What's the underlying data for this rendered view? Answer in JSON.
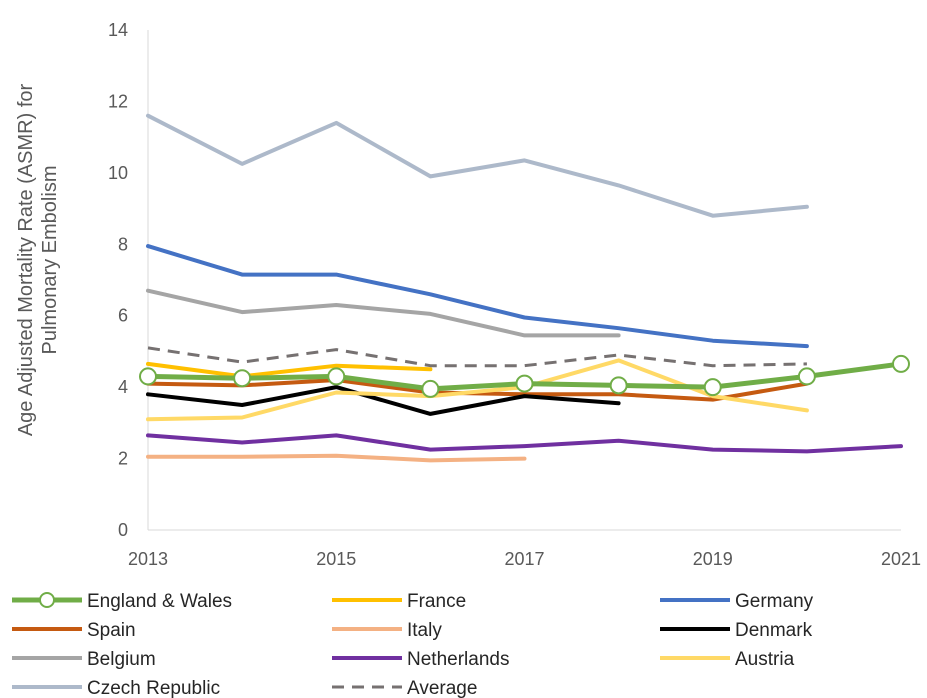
{
  "chart_data": {
    "type": "line",
    "title": "",
    "xlabel": "",
    "ylabel_lines": [
      "Age Adjusted Mortality Rate (ASMR) for",
      "Pulmonary Embolism"
    ],
    "x": [
      2013,
      2014,
      2015,
      2016,
      2017,
      2018,
      2019,
      2020,
      2021
    ],
    "xticks": [
      "2013",
      "2015",
      "2017",
      "2019",
      "2021"
    ],
    "yticks": [
      "0",
      "2",
      "4",
      "6",
      "8",
      "10",
      "12",
      "14"
    ],
    "xlim": [
      2013,
      2021
    ],
    "ylim": [
      0,
      14
    ],
    "grid": false,
    "legend_position": "bottom",
    "series": [
      {
        "name": "England & Wales",
        "color": "#70AD47",
        "dash": false,
        "markers": true,
        "width": 5,
        "values": [
          4.3,
          4.25,
          4.3,
          3.95,
          4.1,
          4.05,
          4.0,
          4.3,
          4.65
        ]
      },
      {
        "name": "France",
        "color": "#FFC000",
        "dash": false,
        "markers": false,
        "width": 4,
        "values": [
          4.65,
          4.3,
          4.6,
          4.5,
          null,
          null,
          null,
          null,
          null
        ]
      },
      {
        "name": "Germany",
        "color": "#4472C4",
        "dash": false,
        "markers": false,
        "width": 4,
        "values": [
          7.95,
          7.15,
          7.15,
          6.6,
          5.95,
          5.65,
          5.3,
          5.15,
          null
        ]
      },
      {
        "name": "Spain",
        "color": "#C55A11",
        "dash": false,
        "markers": false,
        "width": 4,
        "values": [
          4.1,
          4.05,
          4.2,
          3.85,
          3.8,
          3.8,
          3.65,
          4.1,
          null
        ]
      },
      {
        "name": "Italy",
        "color": "#F4B183",
        "dash": false,
        "markers": false,
        "width": 4,
        "values": [
          2.05,
          2.05,
          2.08,
          1.95,
          2.0,
          null,
          null,
          null,
          null
        ]
      },
      {
        "name": "Denmark",
        "color": "#000000",
        "dash": false,
        "markers": false,
        "width": 4,
        "values": [
          3.8,
          3.5,
          4.0,
          3.25,
          3.75,
          3.55,
          null,
          null,
          null
        ]
      },
      {
        "name": "Belgium",
        "color": "#A5A5A5",
        "dash": false,
        "markers": false,
        "width": 4,
        "values": [
          6.7,
          6.1,
          6.3,
          6.05,
          5.45,
          5.45,
          null,
          null,
          null
        ]
      },
      {
        "name": "Netherlands",
        "color": "#7030A0",
        "dash": false,
        "markers": false,
        "width": 4,
        "values": [
          2.65,
          2.45,
          2.65,
          2.25,
          2.35,
          2.5,
          2.25,
          2.2,
          2.35
        ]
      },
      {
        "name": "Austria",
        "color": "#FFD966",
        "dash": false,
        "markers": false,
        "width": 4,
        "values": [
          3.1,
          3.15,
          3.85,
          3.75,
          4.0,
          4.75,
          3.75,
          3.35,
          null
        ]
      },
      {
        "name": "Czech Republic",
        "color": "#ADB9CA",
        "dash": false,
        "markers": false,
        "width": 4,
        "values": [
          11.6,
          10.25,
          11.4,
          9.9,
          10.35,
          9.65,
          8.8,
          9.05,
          null
        ]
      },
      {
        "name": "Average",
        "color": "#767171",
        "dash": true,
        "markers": false,
        "width": 3,
        "values": [
          5.1,
          4.7,
          5.05,
          4.6,
          4.6,
          4.9,
          4.6,
          4.65,
          null
        ]
      }
    ]
  }
}
